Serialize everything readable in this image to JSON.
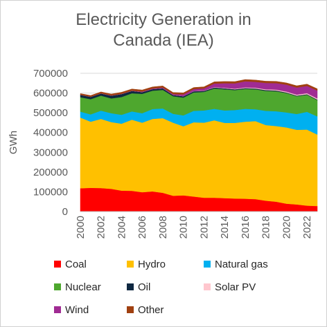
{
  "chart_data": {
    "type": "area",
    "stacked": true,
    "title_lines": [
      "Electricity Generation in",
      "Canada (IEA)"
    ],
    "xlabel": "",
    "ylabel": "GWh",
    "ylim": [
      0,
      700000
    ],
    "y_ticks": [
      0,
      100000,
      200000,
      300000,
      400000,
      500000,
      600000,
      700000
    ],
    "y_tick_labels": [
      "0",
      "100000",
      "200000",
      "300000",
      "400000",
      "500000",
      "600000",
      "700000"
    ],
    "x": [
      2000,
      2001,
      2002,
      2003,
      2004,
      2005,
      2006,
      2007,
      2008,
      2009,
      2010,
      2011,
      2012,
      2013,
      2014,
      2015,
      2016,
      2017,
      2018,
      2019,
      2020,
      2021,
      2022,
      2023
    ],
    "x_tick_labels": [
      "2000",
      "2002",
      "2004",
      "2006",
      "2008",
      "2010",
      "2012",
      "2014",
      "2016",
      "2018",
      "2020",
      "2022"
    ],
    "grid": true,
    "legend_position": "bottom",
    "series": [
      {
        "name": "Coal",
        "color": "#ff0000",
        "values": [
          118000,
          120000,
          119000,
          115000,
          106000,
          105000,
          98000,
          102000,
          95000,
          80000,
          82000,
          76000,
          70000,
          70000,
          68000,
          66000,
          65000,
          63000,
          55000,
          50000,
          40000,
          36000,
          30000,
          28000
        ]
      },
      {
        "name": "Hydro",
        "color": "#ffc000",
        "values": [
          358000,
          335000,
          350000,
          338000,
          339000,
          360000,
          352000,
          367000,
          378000,
          370000,
          350000,
          376000,
          380000,
          392000,
          381000,
          383000,
          390000,
          395000,
          383000,
          383000,
          386000,
          378000,
          385000,
          362000
        ]
      },
      {
        "name": "Natural gas",
        "color": "#00b0f0",
        "values": [
          30000,
          37000,
          42000,
          45000,
          45000,
          42000,
          48000,
          50000,
          49000,
          45000,
          55000,
          58000,
          62000,
          58000,
          63000,
          65000,
          65000,
          60000,
          72000,
          75000,
          76000,
          80000,
          90000,
          92000
        ]
      },
      {
        "name": "Nuclear",
        "color": "#4ea72e",
        "values": [
          73000,
          77000,
          76000,
          75000,
          90000,
          92000,
          98000,
          93000,
          94000,
          89000,
          90000,
          93000,
          94000,
          103000,
          107000,
          101000,
          101000,
          101000,
          101000,
          101000,
          98000,
          90000,
          86000,
          82000
        ]
      },
      {
        "name": "Oil",
        "color": "#0e2841",
        "values": [
          12000,
          12000,
          11000,
          14000,
          15000,
          12000,
          9000,
          8000,
          8000,
          6000,
          7000,
          6000,
          5000,
          5000,
          5000,
          4000,
          4000,
          4000,
          4000,
          4000,
          3000,
          3000,
          3000,
          3000
        ]
      },
      {
        "name": "Solar PV",
        "color": "#ffc7ce",
        "values": [
          0,
          0,
          0,
          0,
          0,
          0,
          0,
          100,
          200,
          300,
          500,
          1000,
          1500,
          2000,
          2500,
          3000,
          3500,
          3800,
          4000,
          4200,
          4500,
          4800,
          5200,
          5500
        ]
      },
      {
        "name": "Wind",
        "color": "#a02b93",
        "values": [
          300,
          500,
          800,
          900,
          1000,
          1500,
          2500,
          3000,
          3800,
          4500,
          8700,
          10000,
          11000,
          18000,
          23000,
          27000,
          31000,
          30000,
          32000,
          33000,
          35000,
          36000,
          37000,
          40000
        ]
      },
      {
        "name": "Other",
        "color": "#a04010",
        "values": [
          6000,
          6000,
          7000,
          7000,
          8000,
          8000,
          8000,
          8000,
          8000,
          8000,
          8000,
          8000,
          8000,
          9000,
          9000,
          9000,
          9000,
          9000,
          9000,
          9000,
          9000,
          9000,
          9000,
          9000
        ]
      }
    ]
  }
}
